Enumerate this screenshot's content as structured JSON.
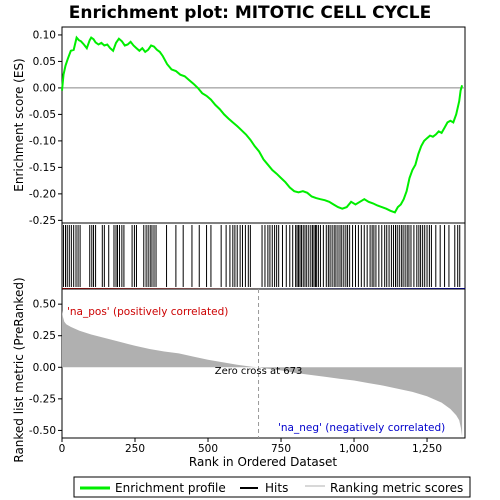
{
  "chart_data": {
    "type": "line",
    "title": "Enrichment plot: MITOTIC CELL CYCLE",
    "xlabel": "Rank in Ordered Dataset",
    "xlim": [
      0,
      1380
    ],
    "x_ticks": [
      0,
      250,
      500,
      750,
      1000,
      1250
    ],
    "x_tick_labels": [
      "0",
      "250",
      "500",
      "750",
      "1,000",
      "1,250"
    ],
    "panels": {
      "enrichment": {
        "ylabel": "Enrichment score (ES)",
        "ylim": [
          -0.255,
          0.115
        ],
        "y_ticks": [
          0.1,
          0.05,
          0.0,
          -0.05,
          -0.1,
          -0.15,
          -0.2,
          -0.25
        ],
        "y_tick_labels": [
          "0.10",
          "0.05",
          "0.00",
          "-0.05",
          "-0.10",
          "-0.15",
          "-0.20",
          "-0.25"
        ],
        "series": [
          {
            "name": "Enrichment profile",
            "color": "#00ee00",
            "x": [
              0,
              5,
              12,
              20,
              30,
              40,
              50,
              58,
              65,
              75,
              85,
              95,
              100,
              108,
              115,
              125,
              135,
              145,
              155,
              165,
              175,
              185,
              195,
              205,
              215,
              225,
              235,
              245,
              255,
              265,
              275,
              285,
              295,
              305,
              315,
              325,
              335,
              345,
              360,
              375,
              390,
              405,
              420,
              435,
              450,
              465,
              480,
              495,
              510,
              525,
              540,
              555,
              570,
              585,
              600,
              615,
              630,
              645,
              660,
              675,
              690,
              705,
              720,
              735,
              750,
              765,
              780,
              795,
              810,
              825,
              840,
              855,
              870,
              885,
              900,
              915,
              930,
              945,
              960,
              975,
              990,
              1005,
              1020,
              1035,
              1050,
              1065,
              1080,
              1095,
              1110,
              1125,
              1140,
              1150,
              1160,
              1170,
              1180,
              1190,
              1200,
              1210,
              1220,
              1230,
              1240,
              1250,
              1260,
              1270,
              1280,
              1290,
              1300,
              1310,
              1320,
              1330,
              1340,
              1350,
              1360,
              1365,
              1370
            ],
            "y": [
              -0.005,
              0.025,
              0.042,
              0.055,
              0.07,
              0.072,
              0.095,
              0.09,
              0.088,
              0.082,
              0.075,
              0.09,
              0.095,
              0.092,
              0.086,
              0.082,
              0.085,
              0.08,
              0.082,
              0.075,
              0.07,
              0.085,
              0.093,
              0.088,
              0.08,
              0.082,
              0.087,
              0.08,
              0.075,
              0.07,
              0.075,
              0.068,
              0.072,
              0.08,
              0.078,
              0.072,
              0.068,
              0.06,
              0.045,
              0.035,
              0.032,
              0.025,
              0.022,
              0.015,
              0.008,
              0.0,
              -0.01,
              -0.015,
              -0.022,
              -0.032,
              -0.04,
              -0.05,
              -0.058,
              -0.065,
              -0.072,
              -0.08,
              -0.088,
              -0.098,
              -0.11,
              -0.12,
              -0.135,
              -0.145,
              -0.155,
              -0.162,
              -0.17,
              -0.178,
              -0.188,
              -0.195,
              -0.197,
              -0.195,
              -0.198,
              -0.205,
              -0.208,
              -0.21,
              -0.212,
              -0.215,
              -0.22,
              -0.225,
              -0.228,
              -0.225,
              -0.215,
              -0.22,
              -0.215,
              -0.21,
              -0.215,
              -0.218,
              -0.222,
              -0.225,
              -0.228,
              -0.232,
              -0.235,
              -0.225,
              -0.22,
              -0.21,
              -0.195,
              -0.17,
              -0.155,
              -0.145,
              -0.125,
              -0.11,
              -0.1,
              -0.095,
              -0.09,
              -0.092,
              -0.088,
              -0.082,
              -0.085,
              -0.075,
              -0.065,
              -0.062,
              -0.065,
              -0.05,
              -0.025,
              -0.005,
              0.005
            ]
          }
        ]
      },
      "hits": {
        "series_name": "Hits",
        "color": "#000000",
        "ranks": [
          5,
          12,
          18,
          25,
          32,
          40,
          48,
          55,
          62,
          95,
          102,
          108,
          115,
          138,
          145,
          160,
          178,
          185,
          190,
          197,
          205,
          212,
          240,
          248,
          255,
          280,
          288,
          295,
          302,
          308,
          315,
          322,
          358,
          390,
          415,
          445,
          470,
          495,
          510,
          545,
          562,
          575,
          585,
          592,
          600,
          610,
          618,
          628,
          638,
          645,
          685,
          695,
          705,
          712,
          720,
          728,
          735,
          742,
          755,
          768,
          780,
          790,
          800,
          805,
          810,
          815,
          820,
          826,
          832,
          838,
          845,
          852,
          858,
          863,
          868,
          872,
          878,
          885,
          895,
          905,
          912,
          918,
          925,
          932,
          938,
          945,
          952,
          958,
          965,
          972,
          978,
          985,
          995,
          1005,
          1015,
          1025,
          1035,
          1045,
          1055,
          1062,
          1068,
          1075,
          1085,
          1095,
          1105,
          1112,
          1120,
          1128,
          1135,
          1142,
          1148,
          1155,
          1162,
          1168,
          1175,
          1182,
          1188,
          1195,
          1205,
          1215,
          1222,
          1228,
          1235,
          1242,
          1250,
          1258,
          1265,
          1280,
          1295,
          1310,
          1325,
          1345,
          1355,
          1362
        ]
      },
      "ranked_metric": {
        "ylabel": "Ranked list metric (PreRanked)",
        "ylim": [
          -0.56,
          0.62
        ],
        "y_ticks": [
          0.5,
          0.25,
          0.0,
          -0.25,
          -0.5
        ],
        "y_tick_labels": [
          "0.50",
          "0.25",
          "0.00",
          "-0.25",
          "-0.50"
        ],
        "series_name": "Ranking metric scores",
        "color": "#b0b0b0",
        "x": [
          0,
          3,
          8,
          15,
          30,
          60,
          100,
          150,
          200,
          250,
          300,
          350,
          400,
          450,
          500,
          550,
          600,
          650,
          673,
          700,
          750,
          800,
          850,
          900,
          950,
          1000,
          1050,
          1100,
          1150,
          1200,
          1250,
          1300,
          1330,
          1350,
          1360,
          1366,
          1370
        ],
        "y": [
          0.45,
          0.4,
          0.36,
          0.34,
          0.32,
          0.29,
          0.26,
          0.23,
          0.2,
          0.17,
          0.145,
          0.125,
          0.11,
          0.085,
          0.06,
          0.04,
          0.02,
          0.005,
          0.0,
          -0.01,
          -0.025,
          -0.045,
          -0.06,
          -0.075,
          -0.09,
          -0.105,
          -0.125,
          -0.145,
          -0.17,
          -0.195,
          -0.23,
          -0.28,
          -0.33,
          -0.38,
          -0.42,
          -0.48,
          -0.55
        ]
      }
    },
    "annotations": {
      "pos_label": "'na_pos' (positively correlated)",
      "neg_label": "'na_neg' (negatively correlated)",
      "zero_cross_label": "Zero cross at 673",
      "zero_cross_rank": 673
    },
    "legend": {
      "placement": "bottom",
      "items": [
        {
          "label": "Enrichment profile",
          "color": "#00ee00"
        },
        {
          "label": "Hits",
          "color": "#000000"
        },
        {
          "label": "Ranking metric scores",
          "color": "#b0b0b0"
        }
      ]
    }
  }
}
